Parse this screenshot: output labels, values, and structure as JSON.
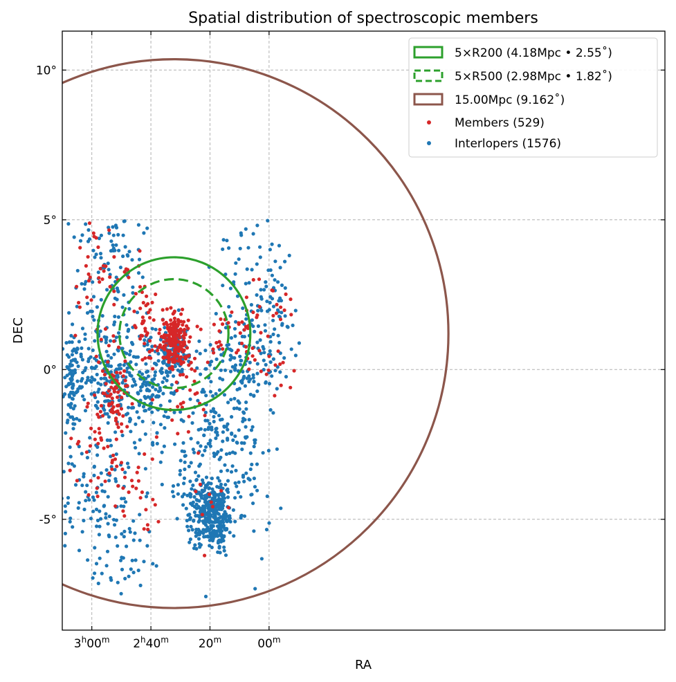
{
  "chart_data": {
    "type": "scatter",
    "title": "Spatial distribution of spectroscopic members",
    "xlabel": "RA",
    "ylabel": "DEC",
    "xlim_min": [
      190,
      -14
    ],
    "ylim_deg": [
      -8.7,
      11.3
    ],
    "x_ticks": [
      {
        "min": 180,
        "h": "3",
        "m": "00"
      },
      {
        "min": 160,
        "h": "2",
        "m": "40"
      },
      {
        "min": 140,
        "h": "",
        "m": "20"
      },
      {
        "min": 120,
        "h": "",
        "m": "00"
      }
    ],
    "y_ticks": [
      {
        "deg": 10,
        "label": "10°"
      },
      {
        "deg": 5,
        "label": "5°"
      },
      {
        "deg": 0,
        "label": "0°"
      },
      {
        "deg": -5,
        "label": "-5°"
      }
    ],
    "grid": true,
    "legend_position": "top-right",
    "center": {
      "ra_min": 152.2,
      "dec_deg": 1.2
    },
    "circles": [
      {
        "name": "5×R200 (4.18Mpc • 2.55˚)",
        "radius_deg": 2.55,
        "color": "#2ca02c",
        "dashed": false
      },
      {
        "name": "5×R500 (2.98Mpc • 1.82˚)",
        "radius_deg": 1.82,
        "color": "#2ca02c",
        "dashed": true
      },
      {
        "name": "15.00Mpc (9.162˚)",
        "radius_deg": 9.162,
        "color": "#8c564b",
        "dashed": false
      }
    ],
    "series": [
      {
        "name": "Members (529)",
        "color": "#d62728",
        "count": 529
      },
      {
        "name": "Interlopers (1576)",
        "color": "#1f77b4",
        "count": 1576
      }
    ],
    "point_groups": {
      "members": [
        {
          "ra_min": 152.2,
          "dec_deg": 0.9,
          "sd_ra": 2.6,
          "sd_dec": 0.45,
          "n": 170
        },
        {
          "ra_min": 152.2,
          "dec_deg": 1.3,
          "sd_ra": 0.5,
          "sd_dec": 0.25,
          "n": 30
        },
        {
          "ra_min": 162.0,
          "dec_deg": 1.5,
          "sd_ra": 1.5,
          "sd_dec": 0.8,
          "n": 35
        },
        {
          "ra_min": 171.5,
          "dec_deg": -0.9,
          "sd_ra": 2.5,
          "sd_dec": 0.5,
          "n": 60
        },
        {
          "ra_min": 176.0,
          "dec_deg": 0.3,
          "sd_ra": 7.0,
          "sd_dec": 2.0,
          "n": 40
        },
        {
          "ra_min": 176.5,
          "dec_deg": -2.2,
          "sd_ra": 4.0,
          "sd_dec": 1.0,
          "n": 25
        },
        {
          "ra_min": 168.0,
          "dec_deg": -3.5,
          "sd_ra": 3.0,
          "sd_dec": 0.9,
          "n": 18
        },
        {
          "ra_min": 161.0,
          "dec_deg": -4.0,
          "sd_ra": 2.0,
          "sd_dec": 0.8,
          "n": 12
        },
        {
          "ra_min": 178.0,
          "dec_deg": 3.5,
          "sd_ra": 4.0,
          "sd_dec": 1.0,
          "n": 25
        },
        {
          "ra_min": 166.0,
          "dec_deg": 3.0,
          "sd_ra": 2.0,
          "sd_dec": 0.6,
          "n": 10
        },
        {
          "ra_min": 135.0,
          "dec_deg": 1.0,
          "sd_ra": 4.0,
          "sd_dec": 0.6,
          "n": 18
        },
        {
          "ra_min": 126.0,
          "dec_deg": 1.2,
          "sd_ra": 4.0,
          "sd_dec": 0.8,
          "n": 30
        },
        {
          "ra_min": 117.0,
          "dec_deg": 1.2,
          "sd_ra": 3.0,
          "sd_dec": 1.2,
          "n": 22
        },
        {
          "ra_min": 147.0,
          "dec_deg": -1.5,
          "sd_ra": 3.0,
          "sd_dec": 0.6,
          "n": 14
        },
        {
          "ra_min": 140.0,
          "dec_deg": -4.2,
          "sd_ra": 3.0,
          "sd_dec": 0.8,
          "n": 10
        },
        {
          "ra_min": 148.0,
          "dec_deg": -0.2,
          "sd_ra": 2.5,
          "sd_dec": 0.5,
          "n": 10
        }
      ],
      "interlopers": [
        {
          "ra_min": 140.0,
          "dec_deg": -4.8,
          "sd_ra": 3.3,
          "sd_dec": 0.55,
          "n": 300
        },
        {
          "ra_min": 136.0,
          "dec_deg": -5.2,
          "sd_ra": 1.0,
          "sd_dec": 0.5,
          "n": 40
        },
        {
          "ra_min": 152.0,
          "dec_deg": 0.5,
          "sd_ra": 3.5,
          "sd_dec": 0.5,
          "n": 120
        },
        {
          "ra_min": 174.0,
          "dec_deg": -0.4,
          "sd_ra": 8.5,
          "sd_dec": 0.8,
          "n": 200
        },
        {
          "ra_min": 160.0,
          "dec_deg": -0.8,
          "sd_ra": 5.0,
          "sd_dec": 0.7,
          "n": 90
        },
        {
          "ra_min": 187.0,
          "dec_deg": -0.5,
          "sd_ra": 1.0,
          "sd_dec": 0.8,
          "n": 60
        },
        {
          "ra_min": 176.0,
          "dec_deg": 1.8,
          "sd_ra": 7.0,
          "sd_dec": 1.5,
          "n": 110
        },
        {
          "ra_min": 178.0,
          "dec_deg": -4.0,
          "sd_ra": 7.0,
          "sd_dec": 1.8,
          "n": 120
        },
        {
          "ra_min": 130.0,
          "dec_deg": -2.5,
          "sd_ra": 5.0,
          "sd_dec": 1.6,
          "n": 120
        },
        {
          "ra_min": 127.0,
          "dec_deg": 0.6,
          "sd_ra": 7.0,
          "sd_dec": 0.9,
          "n": 120
        },
        {
          "ra_min": 118.0,
          "dec_deg": 1.8,
          "sd_ra": 3.5,
          "sd_dec": 1.5,
          "n": 60
        },
        {
          "ra_min": 128.0,
          "dec_deg": 3.8,
          "sd_ra": 6.0,
          "sd_dec": 0.8,
          "n": 30
        },
        {
          "ra_min": 147.0,
          "dec_deg": -3.5,
          "sd_ra": 5.0,
          "sd_dec": 1.2,
          "n": 80
        },
        {
          "ra_min": 168.0,
          "dec_deg": -6.0,
          "sd_ra": 5.0,
          "sd_dec": 0.8,
          "n": 40
        },
        {
          "ra_min": 174.0,
          "dec_deg": 4.2,
          "sd_ra": 6.0,
          "sd_dec": 0.7,
          "n": 40
        },
        {
          "ra_min": 140.0,
          "dec_deg": -1.5,
          "sd_ra": 4.0,
          "sd_dec": 0.7,
          "n": 46
        }
      ]
    }
  }
}
